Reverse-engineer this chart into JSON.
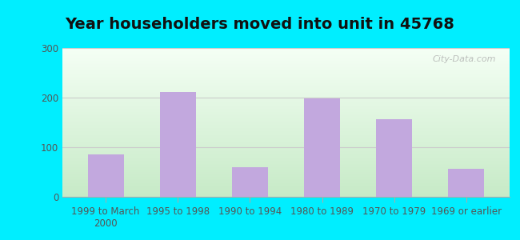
{
  "title": "Year householders moved into unit in 45768",
  "categories": [
    "1999 to March\n2000",
    "1995 to 1998",
    "1990 to 1994",
    "1980 to 1989",
    "1970 to 1979",
    "1969 or earlier"
  ],
  "values": [
    85,
    212,
    60,
    199,
    157,
    57
  ],
  "bar_color": "#c2a8de",
  "ylim": [
    0,
    300
  ],
  "yticks": [
    0,
    100,
    200,
    300
  ],
  "background_outer": "#00eeff",
  "background_inner_top": "#f0f8f0",
  "background_inner_bottom": "#c8e8c8",
  "grid_color": "#cccccc",
  "title_fontsize": 14,
  "tick_fontsize": 8.5,
  "watermark": "City-Data.com"
}
